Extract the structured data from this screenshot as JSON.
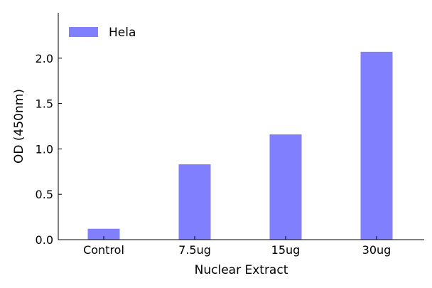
{
  "chart_data": {
    "type": "bar",
    "categories": [
      "Control",
      "7.5ug",
      "15ug",
      "30ug"
    ],
    "series": [
      {
        "name": "Hela",
        "values": [
          0.12,
          0.83,
          1.16,
          2.07
        ],
        "color": "#8080ff"
      }
    ],
    "xlabel": "Nuclear Extract",
    "ylabel": "OD (450nm)",
    "ylim": [
      0,
      2.5
    ],
    "yticks": [
      0.0,
      0.5,
      1.0,
      1.5,
      2.0
    ],
    "ytick_labels": [
      "0.0",
      "0.5",
      "1.0",
      "1.5",
      "2.0"
    ],
    "grid": false,
    "legend": {
      "position": "top-left"
    }
  }
}
